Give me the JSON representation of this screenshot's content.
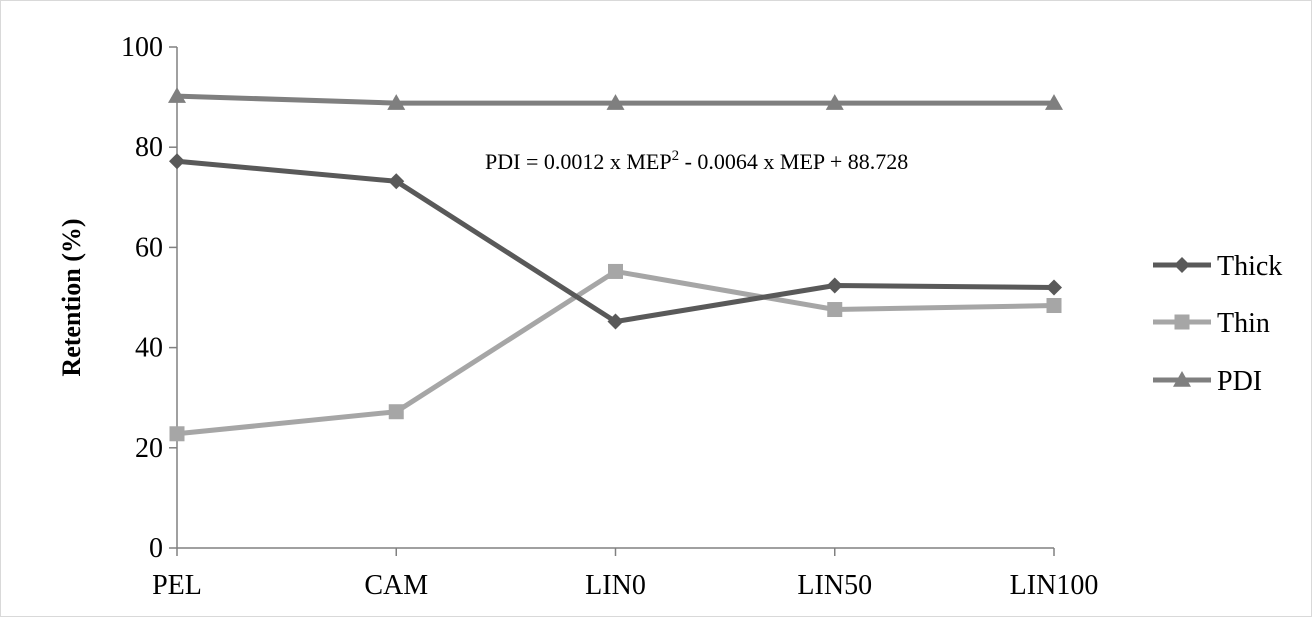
{
  "chart_data": {
    "type": "line",
    "title": "",
    "xlabel": "",
    "ylabel": "Retention (%)",
    "categories": [
      "PEL",
      "CAM",
      "LIN0",
      "LIN50",
      "LIN100"
    ],
    "ylim": [
      0,
      100
    ],
    "yticks": [
      0,
      20,
      40,
      60,
      80,
      100
    ],
    "grid": false,
    "legend_position": "right",
    "series": [
      {
        "name": "Thick",
        "marker": "diamond",
        "color": "#595959",
        "values": [
          77.2,
          73.2,
          45.2,
          52.4,
          52.0
        ]
      },
      {
        "name": "Thin",
        "marker": "square",
        "color": "#a6a6a6",
        "values": [
          22.8,
          27.2,
          55.2,
          47.6,
          48.4
        ]
      },
      {
        "name": "PDI",
        "marker": "triangle",
        "color": "#7f7f7f",
        "values": [
          90.2,
          88.8,
          88.8,
          88.8,
          88.8
        ]
      }
    ],
    "annotation": {
      "pre": "PDI = 0.0012  x MEP",
      "sup": "2",
      "post": " - 0.0064  x MEP + 88.728"
    }
  }
}
